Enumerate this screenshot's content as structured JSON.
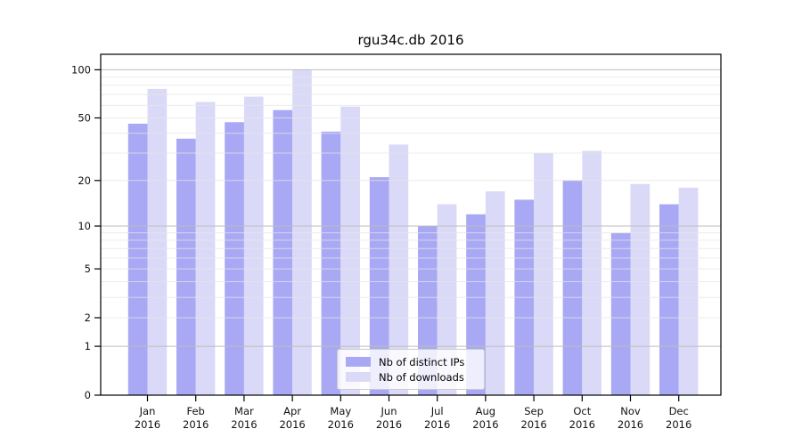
{
  "title": "rgu34c.db 2016",
  "legend": {
    "items": [
      {
        "label": "Nb of distinct IPs",
        "color": "#a8a8f4"
      },
      {
        "label": "Nb of downloads",
        "color": "#dadaf8"
      }
    ]
  },
  "axes": {
    "y_tick_labels": [
      "100",
      "50",
      "20",
      "10",
      "5",
      "2",
      "1",
      "0"
    ],
    "x_months": [
      "Jan",
      "Feb",
      "Mar",
      "Apr",
      "May",
      "Jun",
      "Jul",
      "Aug",
      "Sep",
      "Oct",
      "Nov",
      "Dec"
    ],
    "x_year": "2016"
  },
  "chart_data": {
    "type": "bar",
    "title": "rgu34c.db 2016",
    "yscale": "log1p",
    "grid": "on",
    "legend_position": "lower center",
    "yticks": [
      0,
      1,
      2,
      5,
      10,
      20,
      50,
      100
    ],
    "minor_grid_values": [
      2,
      3,
      4,
      5,
      6,
      7,
      8,
      9,
      20,
      30,
      40,
      50,
      60,
      70,
      80,
      90
    ],
    "major_grid_values": [
      1,
      10,
      100
    ],
    "ylim": [
      0,
      126
    ],
    "categories": [
      "Jan 2016",
      "Feb 2016",
      "Mar 2016",
      "Apr 2016",
      "May 2016",
      "Jun 2016",
      "Jul 2016",
      "Aug 2016",
      "Sep 2016",
      "Oct 2016",
      "Nov 2016",
      "Dec 2016"
    ],
    "series": [
      {
        "name": "Nb of distinct IPs",
        "color": "#a8a8f4",
        "values": [
          46,
          37,
          47,
          56,
          41,
          21,
          10,
          12,
          15,
          20,
          9,
          14
        ]
      },
      {
        "name": "Nb of downloads",
        "color": "#dadaf8",
        "values": [
          76,
          63,
          68,
          100,
          59,
          34,
          14,
          17,
          30,
          31,
          19,
          18
        ]
      }
    ]
  },
  "colors": {
    "spine": "#000000",
    "major_grid": "#bdbdbd",
    "minor_grid": "#e6e6e6",
    "tick_text": "#111111"
  }
}
